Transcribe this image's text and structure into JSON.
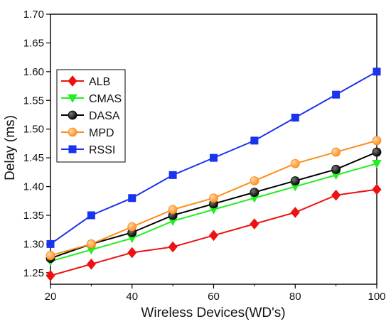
{
  "chart_data": {
    "type": "line",
    "title": "",
    "xlabel": "Wireless Devices(WD's)",
    "ylabel": "Delay (ms)",
    "x": [
      20,
      30,
      40,
      50,
      60,
      70,
      80,
      90,
      100
    ],
    "xlim": [
      20,
      100
    ],
    "ylim": [
      1.23,
      1.7
    ],
    "xticks": [
      "20",
      "40",
      "60",
      "80",
      "100"
    ],
    "xtick_values": [
      20,
      40,
      60,
      80,
      100
    ],
    "yticks": [
      "1.25",
      "1.30",
      "1.35",
      "1.40",
      "1.45",
      "1.50",
      "1.55",
      "1.60",
      "1.65",
      "1.70"
    ],
    "ytick_values": [
      1.25,
      1.3,
      1.35,
      1.4,
      1.45,
      1.5,
      1.55,
      1.6,
      1.65,
      1.7
    ],
    "grid": false,
    "legend_position": "top-left",
    "series": [
      {
        "name": "ALB",
        "color": "#ee1111",
        "marker": "diamond",
        "values": [
          1.245,
          1.265,
          1.285,
          1.295,
          1.315,
          1.335,
          1.355,
          1.385,
          1.395
        ]
      },
      {
        "name": "CMAS",
        "color": "#22ee22",
        "marker": "triangle-down",
        "values": [
          1.27,
          1.29,
          1.31,
          1.34,
          1.36,
          1.38,
          1.4,
          1.42,
          1.44
        ]
      },
      {
        "name": "DASA",
        "color": "#000000",
        "marker": "circle",
        "values": [
          1.275,
          1.3,
          1.32,
          1.35,
          1.37,
          1.39,
          1.41,
          1.43,
          1.46
        ]
      },
      {
        "name": "MPD",
        "color": "#ff8c1a",
        "marker": "circle",
        "values": [
          1.28,
          1.3,
          1.33,
          1.36,
          1.38,
          1.41,
          1.44,
          1.46,
          1.48
        ]
      },
      {
        "name": "RSSI",
        "color": "#1a33ee",
        "marker": "square",
        "values": [
          1.3,
          1.35,
          1.38,
          1.42,
          1.45,
          1.48,
          1.52,
          1.56,
          1.6
        ]
      }
    ]
  }
}
